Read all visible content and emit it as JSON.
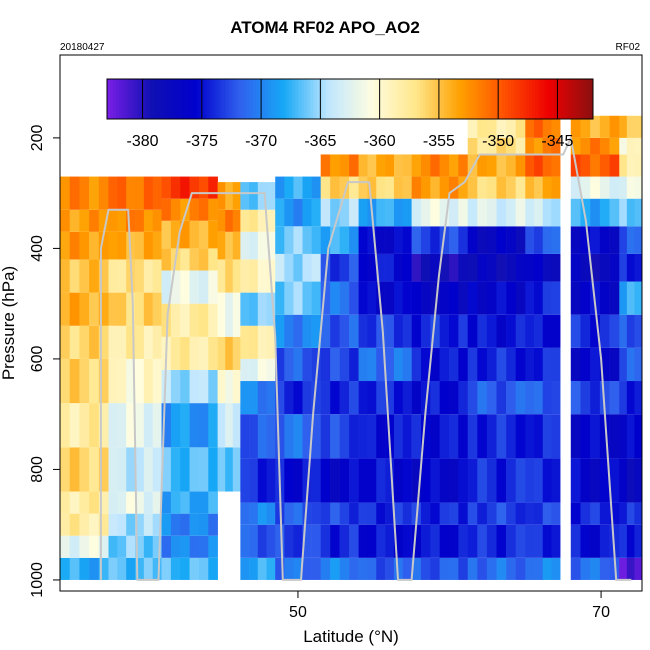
{
  "chart_data": {
    "type": "heatmap",
    "title": "ATOM4 RF02 APO_AO2",
    "subtitle_left": "20180427",
    "subtitle_right": "RF02",
    "xlabel": "Latitude (°N)",
    "ylabel": "Pressure (hPa)",
    "xlim": [
      34.3,
      72.7
    ],
    "ylim": [
      1020,
      50
    ],
    "x_ticks": [
      50,
      70
    ],
    "y_ticks": [
      200,
      400,
      600,
      800,
      1000
    ],
    "colorbar": {
      "range": [
        -383,
        -342
      ],
      "ticks": [
        -380,
        -375,
        -370,
        -365,
        -360,
        -355,
        -350,
        -345
      ],
      "colors": [
        "#7a1fe6",
        "#1010b4",
        "#0000cd",
        "#3060ee",
        "#16a8f6",
        "#bfe6ff",
        "#fffde0",
        "#ffe68a",
        "#ffa000",
        "#ff5000",
        "#ee0000",
        "#8b1010"
      ]
    },
    "columns": [
      {
        "lat": [
          34.3,
          37.5
        ],
        "layers": [
          [
            1000,
            960,
            -368
          ],
          [
            960,
            920,
            -362
          ],
          [
            920,
            880,
            -358
          ],
          [
            880,
            840,
            -358
          ],
          [
            840,
            760,
            -356
          ],
          [
            760,
            680,
            -358
          ],
          [
            680,
            600,
            -356
          ],
          [
            600,
            540,
            -356
          ],
          [
            540,
            480,
            -354
          ],
          [
            480,
            420,
            -355
          ],
          [
            420,
            370,
            -353
          ],
          [
            370,
            330,
            -353
          ],
          [
            330,
            270,
            -352
          ]
        ]
      },
      {
        "lat": [
          37.5,
          41.0
        ],
        "layers": [
          [
            1000,
            960,
            -367
          ],
          [
            960,
            920,
            -366
          ],
          [
            920,
            880,
            -365
          ],
          [
            880,
            840,
            -362
          ],
          [
            840,
            760,
            -364
          ],
          [
            760,
            680,
            -362
          ],
          [
            680,
            600,
            -360
          ],
          [
            600,
            540,
            -358
          ],
          [
            540,
            480,
            -356
          ],
          [
            480,
            420,
            -357
          ],
          [
            420,
            370,
            -354
          ],
          [
            370,
            330,
            -352
          ],
          [
            330,
            270,
            -351
          ]
        ]
      },
      {
        "lat": [
          41.0,
          44.7
        ],
        "layers": [
          [
            1000,
            960,
            -367
          ],
          [
            960,
            920,
            -370
          ],
          [
            920,
            880,
            -370
          ],
          [
            880,
            840,
            -368
          ],
          [
            840,
            760,
            -367
          ],
          [
            760,
            680,
            -369
          ],
          [
            680,
            620,
            -365
          ],
          [
            620,
            560,
            -358
          ],
          [
            560,
            500,
            -358
          ],
          [
            500,
            440,
            -362
          ],
          [
            440,
            400,
            -356
          ],
          [
            400,
            350,
            -354
          ],
          [
            350,
            310,
            -352
          ],
          [
            310,
            270,
            -348
          ]
        ]
      },
      {
        "lat": [
          44.7,
          46.2
        ],
        "layers": [
          [
            840,
            760,
            -366
          ],
          [
            760,
            680,
            -364
          ],
          [
            680,
            620,
            -360
          ],
          [
            620,
            560,
            -356
          ],
          [
            560,
            480,
            -361
          ],
          [
            480,
            420,
            -357
          ],
          [
            420,
            370,
            -354
          ],
          [
            370,
            330,
            -352
          ],
          [
            330,
            280,
            -353
          ]
        ]
      },
      {
        "lat": [
          46.2,
          48.5
        ],
        "layers": [
          [
            1000,
            960,
            -368
          ],
          [
            960,
            900,
            -372
          ],
          [
            900,
            860,
            -370
          ],
          [
            860,
            780,
            -374
          ],
          [
            780,
            700,
            -372
          ],
          [
            700,
            640,
            -370
          ],
          [
            640,
            600,
            -362
          ],
          [
            600,
            540,
            -358
          ],
          [
            540,
            480,
            -366
          ],
          [
            480,
            420,
            -359
          ],
          [
            420,
            370,
            -362
          ],
          [
            370,
            330,
            -358
          ],
          [
            330,
            280,
            -366
          ]
        ]
      },
      {
        "lat": [
          48.5,
          51.5
        ],
        "layers": [
          [
            1000,
            960,
            -371
          ],
          [
            960,
            900,
            -373
          ],
          [
            900,
            860,
            -372
          ],
          [
            860,
            780,
            -375
          ],
          [
            780,
            700,
            -371
          ],
          [
            700,
            640,
            -374
          ],
          [
            640,
            580,
            -372
          ],
          [
            580,
            520,
            -370
          ],
          [
            520,
            460,
            -366
          ],
          [
            460,
            410,
            -365
          ],
          [
            410,
            360,
            -366
          ],
          [
            360,
            310,
            -369
          ],
          [
            310,
            270,
            -368
          ]
        ]
      },
      {
        "lat": [
          51.5,
          54.0
        ],
        "layers": [
          [
            1000,
            960,
            -370
          ],
          [
            960,
            900,
            -374
          ],
          [
            900,
            860,
            -373
          ],
          [
            860,
            780,
            -376
          ],
          [
            780,
            700,
            -373
          ],
          [
            700,
            640,
            -374
          ],
          [
            640,
            580,
            -373
          ],
          [
            580,
            520,
            -372
          ],
          [
            520,
            460,
            -371
          ],
          [
            460,
            410,
            -373
          ],
          [
            410,
            360,
            -368
          ],
          [
            360,
            310,
            -365
          ],
          [
            310,
            270,
            -356
          ],
          [
            270,
            230,
            -352
          ]
        ]
      },
      {
        "lat": [
          54.0,
          57.5
        ],
        "layers": [
          [
            1000,
            960,
            -372
          ],
          [
            960,
            900,
            -375
          ],
          [
            900,
            860,
            -374
          ],
          [
            860,
            780,
            -375
          ],
          [
            780,
            700,
            -375
          ],
          [
            700,
            640,
            -374
          ],
          [
            640,
            580,
            -371
          ],
          [
            580,
            520,
            -373
          ],
          [
            520,
            460,
            -376
          ],
          [
            460,
            410,
            -375
          ],
          [
            410,
            360,
            -376
          ],
          [
            360,
            310,
            -368
          ],
          [
            310,
            270,
            -356
          ],
          [
            270,
            230,
            -354
          ]
        ]
      },
      {
        "lat": [
          57.5,
          61.2
        ],
        "layers": [
          [
            1000,
            960,
            -372
          ],
          [
            960,
            900,
            -375
          ],
          [
            900,
            860,
            -374
          ],
          [
            860,
            780,
            -376
          ],
          [
            780,
            700,
            -375
          ],
          [
            700,
            640,
            -375
          ],
          [
            640,
            580,
            -375
          ],
          [
            580,
            520,
            -374
          ],
          [
            520,
            460,
            -377
          ],
          [
            460,
            410,
            -379
          ],
          [
            410,
            360,
            -373
          ],
          [
            360,
            310,
            -362
          ],
          [
            310,
            270,
            -353
          ],
          [
            270,
            230,
            -352
          ]
        ]
      },
      {
        "lat": [
          61.2,
          65.0
        ],
        "layers": [
          [
            1000,
            960,
            -371
          ],
          [
            960,
            900,
            -374
          ],
          [
            900,
            860,
            -373
          ],
          [
            860,
            780,
            -374
          ],
          [
            780,
            700,
            -374
          ],
          [
            700,
            640,
            -372
          ],
          [
            640,
            580,
            -374
          ],
          [
            580,
            520,
            -375
          ],
          [
            520,
            460,
            -376
          ],
          [
            460,
            410,
            -378
          ],
          [
            410,
            360,
            -377
          ],
          [
            360,
            310,
            -363
          ],
          [
            310,
            270,
            -356
          ],
          [
            270,
            230,
            -354
          ],
          [
            230,
            200,
            -357
          ],
          [
            200,
            160,
            -358
          ]
        ]
      },
      {
        "lat": [
          65.0,
          67.3
        ],
        "layers": [
          [
            1000,
            960,
            -370
          ],
          [
            960,
            900,
            -374
          ],
          [
            900,
            860,
            -373
          ],
          [
            860,
            780,
            -374
          ],
          [
            780,
            700,
            -374
          ],
          [
            700,
            640,
            -372
          ],
          [
            640,
            580,
            -374
          ],
          [
            580,
            520,
            -375
          ],
          [
            520,
            460,
            -374
          ],
          [
            460,
            410,
            -377
          ],
          [
            410,
            360,
            -372
          ],
          [
            360,
            310,
            -364
          ],
          [
            310,
            270,
            -354
          ],
          [
            270,
            230,
            -350
          ],
          [
            230,
            200,
            -352
          ],
          [
            200,
            160,
            -351
          ]
        ]
      },
      {
        "lat": [
          68.0,
          71.2
        ],
        "layers": [
          [
            1000,
            960,
            -371
          ],
          [
            960,
            900,
            -375
          ],
          [
            900,
            860,
            -374
          ],
          [
            860,
            780,
            -376
          ],
          [
            780,
            700,
            -376
          ],
          [
            700,
            640,
            -373
          ],
          [
            640,
            580,
            -376
          ],
          [
            580,
            520,
            -374
          ],
          [
            520,
            460,
            -376
          ],
          [
            460,
            410,
            -378
          ],
          [
            410,
            360,
            -376
          ],
          [
            360,
            310,
            -368
          ],
          [
            310,
            270,
            -362
          ],
          [
            270,
            230,
            -350
          ],
          [
            230,
            200,
            -352
          ],
          [
            200,
            160,
            -354
          ]
        ]
      },
      {
        "lat": [
          71.2,
          72.7
        ],
        "layers": [
          [
            1000,
            960,
            -382
          ],
          [
            960,
            900,
            -374
          ],
          [
            900,
            860,
            -374
          ],
          [
            860,
            780,
            -377
          ],
          [
            780,
            700,
            -376
          ],
          [
            700,
            640,
            -374
          ],
          [
            640,
            580,
            -372
          ],
          [
            580,
            520,
            -372
          ],
          [
            520,
            460,
            -368
          ],
          [
            460,
            410,
            -374
          ],
          [
            410,
            360,
            -372
          ],
          [
            360,
            310,
            -366
          ],
          [
            310,
            270,
            -362
          ],
          [
            270,
            230,
            -358
          ],
          [
            230,
            200,
            -360
          ],
          [
            200,
            160,
            -355
          ]
        ]
      }
    ],
    "flight_track": [
      [
        37.0,
        1000
      ],
      [
        37.0,
        400
      ],
      [
        37.5,
        330
      ],
      [
        38.8,
        330
      ],
      [
        39.1,
        500
      ],
      [
        39.4,
        1000
      ],
      [
        40.8,
        1000
      ],
      [
        41.4,
        520
      ],
      [
        42.2,
        370
      ],
      [
        43.0,
        300
      ],
      [
        47.8,
        300
      ],
      [
        48.5,
        560
      ],
      [
        49.0,
        1000
      ],
      [
        50.2,
        1000
      ],
      [
        51.0,
        700
      ],
      [
        52.0,
        400
      ],
      [
        53.3,
        280
      ],
      [
        54.7,
        280
      ],
      [
        55.6,
        550
      ],
      [
        56.6,
        1000
      ],
      [
        57.5,
        1000
      ],
      [
        58.4,
        700
      ],
      [
        59.3,
        450
      ],
      [
        60.0,
        300
      ],
      [
        61.0,
        280
      ],
      [
        62.0,
        230
      ],
      [
        67.5,
        230
      ],
      [
        68.0,
        200
      ],
      [
        69.0,
        350
      ],
      [
        70.0,
        600
      ],
      [
        71.0,
        1000
      ],
      [
        72.0,
        1000
      ]
    ]
  }
}
